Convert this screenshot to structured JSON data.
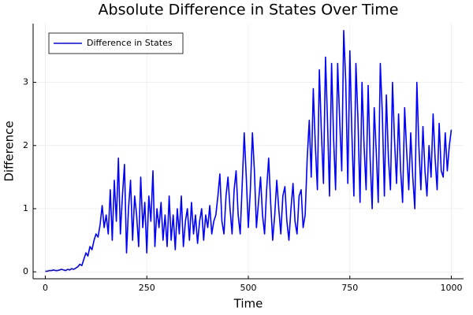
{
  "chart_data": {
    "type": "line",
    "title": "Absolute Difference in States Over Time",
    "xlabel": "Time",
    "ylabel": "Difference",
    "x": [
      0,
      5,
      10,
      15,
      20,
      25,
      30,
      35,
      40,
      45,
      50,
      55,
      60,
      65,
      70,
      75,
      80,
      85,
      90,
      95,
      100,
      105,
      110,
      115,
      120,
      125,
      130,
      135,
      140,
      145,
      150,
      155,
      160,
      165,
      170,
      175,
      180,
      185,
      190,
      195,
      200,
      205,
      210,
      215,
      220,
      225,
      230,
      235,
      240,
      245,
      250,
      255,
      260,
      265,
      270,
      275,
      280,
      285,
      290,
      295,
      300,
      305,
      310,
      315,
      320,
      325,
      330,
      335,
      340,
      345,
      350,
      355,
      360,
      365,
      370,
      375,
      380,
      385,
      390,
      395,
      400,
      405,
      410,
      415,
      420,
      425,
      430,
      435,
      440,
      445,
      450,
      455,
      460,
      465,
      470,
      475,
      480,
      485,
      490,
      495,
      500,
      505,
      510,
      515,
      520,
      525,
      530,
      535,
      540,
      545,
      550,
      555,
      560,
      565,
      570,
      575,
      580,
      585,
      590,
      595,
      600,
      605,
      610,
      615,
      620,
      625,
      630,
      635,
      640,
      645,
      650,
      655,
      660,
      665,
      670,
      675,
      680,
      685,
      690,
      695,
      700,
      705,
      710,
      715,
      720,
      725,
      730,
      735,
      740,
      745,
      750,
      755,
      760,
      765,
      770,
      775,
      780,
      785,
      790,
      795,
      800,
      805,
      810,
      815,
      820,
      825,
      830,
      835,
      840,
      845,
      850,
      855,
      860,
      865,
      870,
      875,
      880,
      885,
      890,
      895,
      900,
      905,
      910,
      915,
      920,
      925,
      930,
      935,
      940,
      945,
      950,
      955,
      960,
      965,
      970,
      975,
      980,
      985,
      990,
      995,
      1000
    ],
    "series": [
      {
        "name": "Difference in States",
        "color": "#0000ff",
        "values": [
          0.01,
          0.01,
          0.02,
          0.02,
          0.03,
          0.02,
          0.02,
          0.03,
          0.04,
          0.03,
          0.02,
          0.04,
          0.03,
          0.05,
          0.04,
          0.06,
          0.08,
          0.12,
          0.1,
          0.2,
          0.3,
          0.25,
          0.4,
          0.35,
          0.5,
          0.6,
          0.55,
          0.75,
          1.05,
          0.7,
          0.9,
          0.6,
          1.3,
          0.5,
          1.45,
          0.8,
          1.8,
          0.6,
          1.2,
          1.7,
          0.3,
          1.0,
          1.45,
          0.5,
          1.2,
          0.9,
          0.4,
          1.5,
          0.7,
          1.1,
          0.3,
          1.2,
          0.8,
          1.6,
          0.4,
          1.0,
          0.7,
          1.1,
          0.5,
          0.9,
          0.4,
          1.2,
          0.5,
          0.9,
          0.35,
          1.0,
          0.6,
          1.2,
          0.4,
          0.8,
          1.0,
          0.5,
          1.1,
          0.6,
          0.9,
          0.45,
          0.8,
          1.0,
          0.5,
          0.9,
          0.7,
          1.05,
          0.6,
          0.8,
          0.9,
          1.2,
          1.55,
          0.8,
          0.6,
          1.2,
          1.5,
          1.0,
          0.6,
          1.3,
          1.6,
          0.9,
          0.6,
          1.4,
          2.2,
          1.5,
          0.7,
          1.3,
          2.2,
          1.6,
          0.7,
          1.1,
          1.5,
          0.9,
          0.6,
          1.3,
          1.8,
          1.1,
          0.5,
          0.9,
          1.45,
          1.0,
          0.6,
          1.2,
          1.35,
          0.8,
          0.5,
          1.0,
          1.4,
          0.8,
          0.6,
          1.2,
          1.3,
          0.7,
          0.9,
          1.8,
          2.4,
          1.5,
          2.9,
          2.0,
          1.3,
          3.2,
          2.2,
          1.4,
          3.4,
          2.4,
          1.2,
          3.3,
          2.1,
          1.3,
          3.3,
          2.4,
          1.6,
          3.82,
          3.0,
          1.4,
          3.5,
          2.2,
          1.2,
          3.3,
          2.4,
          1.1,
          3.0,
          2.0,
          1.3,
          2.95,
          1.8,
          1.0,
          2.6,
          1.9,
          1.1,
          3.3,
          2.5,
          1.2,
          2.8,
          1.8,
          1.3,
          3.0,
          2.1,
          1.4,
          2.5,
          1.6,
          1.1,
          2.6,
          1.9,
          1.3,
          2.2,
          1.5,
          1.0,
          3.0,
          2.0,
          1.3,
          2.3,
          1.6,
          1.2,
          2.0,
          1.5,
          2.5,
          1.8,
          1.3,
          2.35,
          1.6,
          1.5,
          2.2,
          1.6,
          2.0,
          2.25
        ]
      }
    ],
    "xlim": [
      -30,
      1030
    ],
    "xticks": [
      0,
      250,
      500,
      750,
      1000
    ],
    "ylim": [
      -0.11,
      3.93
    ],
    "yticks": [
      0,
      1,
      2,
      3
    ],
    "grid": true,
    "legend": "top-left"
  }
}
